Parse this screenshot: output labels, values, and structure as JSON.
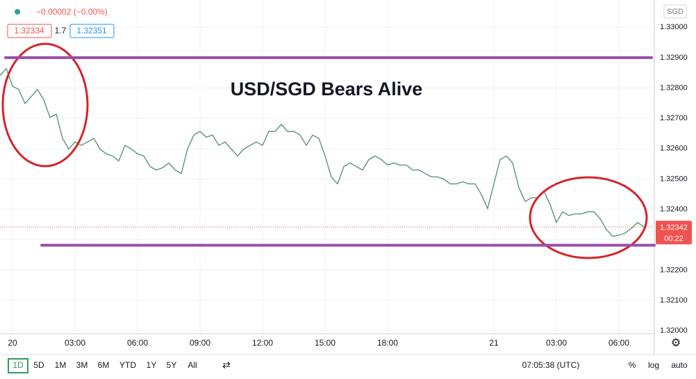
{
  "header": {
    "change": "−0.00002 (−0.00%)",
    "bid": "1.32334",
    "spread": "1.7",
    "ask": "1.32351",
    "currency": "SGD",
    "countdown": "00:22"
  },
  "toolbar": {
    "ranges": [
      "1D",
      "5D",
      "1M",
      "3M",
      "6M",
      "YTD",
      "1Y",
      "5Y",
      "All"
    ],
    "clock": "07:05:38 (UTC)",
    "percent": "%",
    "log": "log",
    "auto": "auto"
  },
  "chart_data": {
    "type": "line",
    "title": "USD/SGD Bears Alive",
    "color": "#4e8f6b",
    "grid": true,
    "categories": [
      null,
      null,
      "20",
      null,
      null,
      null,
      null,
      null,
      null,
      null,
      null,
      null,
      "03:00",
      null,
      null,
      null,
      null,
      null,
      null,
      null,
      null,
      null,
      "06:00",
      null,
      null,
      null,
      null,
      null,
      null,
      null,
      null,
      null,
      "09:00",
      null,
      null,
      null,
      null,
      null,
      null,
      null,
      null,
      null,
      "12:00",
      null,
      null,
      null,
      null,
      null,
      null,
      null,
      null,
      null,
      "15:00",
      null,
      null,
      null,
      null,
      null,
      null,
      null,
      null,
      null,
      "18:00",
      null,
      null,
      null,
      null,
      null,
      null,
      null,
      null,
      null,
      null,
      null,
      null,
      null,
      null,
      null,
      null,
      "21",
      null,
      null,
      null,
      null,
      null,
      null,
      null,
      null,
      null,
      "03:00",
      null,
      null,
      null,
      null,
      null,
      null,
      null,
      null,
      null,
      "06:00",
      null,
      null,
      null,
      null
    ],
    "series": [
      {
        "name": "USD/SGD",
        "color": "#4e8f6b",
        "values": [
          1.32841,
          1.32864,
          1.32806,
          1.32795,
          1.32749,
          1.32772,
          1.32795,
          1.32761,
          1.32703,
          1.32714,
          1.32634,
          1.32599,
          1.32622,
          1.32611,
          1.32622,
          1.32634,
          1.32599,
          1.32583,
          1.32576,
          1.3256,
          1.32611,
          1.32599,
          1.32583,
          1.32576,
          1.32541,
          1.3253,
          1.32537,
          1.32553,
          1.3253,
          1.32518,
          1.32599,
          1.32645,
          1.32657,
          1.32638,
          1.32645,
          1.32611,
          1.32622,
          1.32599,
          1.32576,
          1.32599,
          1.32611,
          1.32622,
          1.32611,
          1.32657,
          1.32657,
          1.3268,
          1.32657,
          1.32657,
          1.32645,
          1.32611,
          1.32645,
          1.32634,
          1.32576,
          1.32507,
          1.32484,
          1.32541,
          1.32553,
          1.32541,
          1.3253,
          1.32564,
          1.32576,
          1.32564,
          1.32546,
          1.32553,
          1.32546,
          1.32546,
          1.3253,
          1.3253,
          1.32518,
          1.32507,
          1.32507,
          1.325,
          1.32484,
          1.32484,
          1.32491,
          1.32484,
          1.32484,
          1.32449,
          1.32403,
          1.32484,
          1.32564,
          1.32576,
          1.32553,
          1.32472,
          1.32426,
          1.32438,
          1.32438,
          1.32461,
          1.32415,
          1.32357,
          1.32392,
          1.3238,
          1.32385,
          1.32385,
          1.32392,
          1.32392,
          1.32369,
          1.32334,
          1.32311,
          1.32315,
          1.32322,
          1.32338,
          1.32357,
          1.32342
        ]
      }
    ],
    "ylim": [
      1.3199,
      1.3309
    ],
    "yticks": [
      {
        "value": 1.32,
        "label": "1.32000"
      },
      {
        "value": 1.321,
        "label": "1.32100"
      },
      {
        "value": 1.322,
        "label": "1.32200"
      },
      {
        "value": 1.323,
        "label": "1.32300"
      },
      {
        "value": 1.324,
        "label": "1.32400"
      },
      {
        "value": 1.325,
        "label": "1.32500"
      },
      {
        "value": 1.326,
        "label": "1.32600"
      },
      {
        "value": 1.327,
        "label": "1.32700"
      },
      {
        "value": 1.328,
        "label": "1.32800"
      },
      {
        "value": 1.329,
        "label": "1.32900"
      },
      {
        "value": 1.33,
        "label": "1.33000"
      }
    ],
    "hlines": [
      {
        "value": 1.329,
        "color": "#9b4ea6"
      },
      {
        "value": 1.32282,
        "color": "#9b4ea6"
      }
    ],
    "last_price_color": "#ef5350"
  }
}
